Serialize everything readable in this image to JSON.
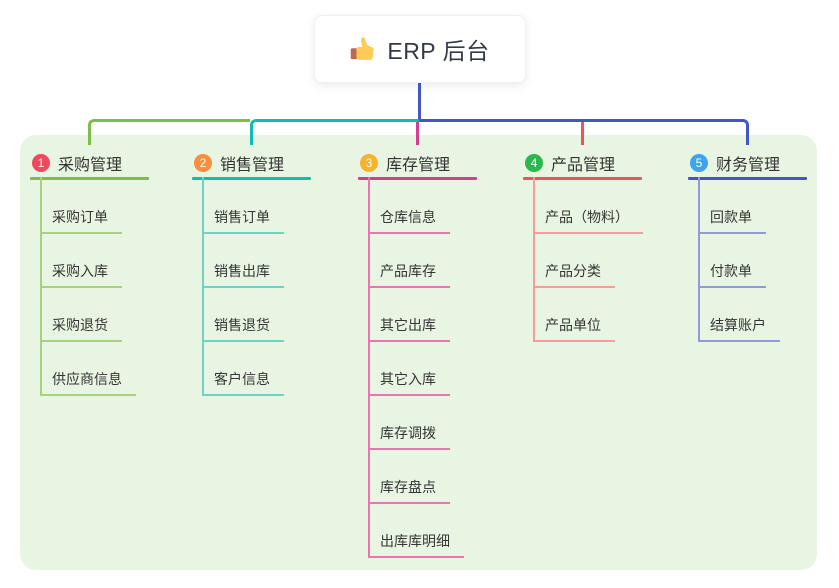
{
  "root": {
    "label": "ERP 后台",
    "icon": "thumbs-up-icon"
  },
  "canvas": {
    "background": "#ffffff",
    "panel_background": "#E9F5E3",
    "trunk_color": "#4356C8"
  },
  "branches": [
    {
      "badge": "1",
      "badge_color": "#F1485E",
      "line_color": "#7CBE4B",
      "light_color": "#A6D17F",
      "label": "采购管理",
      "children": [
        "采购订单",
        "采购入库",
        "采购退货",
        "供应商信息"
      ]
    },
    {
      "badge": "2",
      "badge_color": "#FA8E3B",
      "line_color": "#10BDB0",
      "light_color": "#6FD2C6",
      "label": "销售管理",
      "children": [
        "销售订单",
        "销售出库",
        "销售退货",
        "客户信息"
      ]
    },
    {
      "badge": "3",
      "badge_color": "#F7B32B",
      "line_color": "#D23F92",
      "light_color": "#E874B2",
      "label": "库存管理",
      "children": [
        "仓库信息",
        "产品库存",
        "其它出库",
        "其它入库",
        "库存调拨",
        "库存盘点",
        "出库库明细"
      ]
    },
    {
      "badge": "4",
      "badge_color": "#27B94C",
      "line_color": "#F45156",
      "light_color": "#F79C99",
      "label": "产品管理",
      "children": [
        "产品（物料）",
        "产品分类",
        "产品单位"
      ]
    },
    {
      "badge": "5",
      "badge_color": "#3FA4EF",
      "line_color": "#4356C8",
      "light_color": "#8E9DDA",
      "label": "财务管理",
      "children": [
        "回款单",
        "付款单",
        "结算账户"
      ]
    }
  ]
}
